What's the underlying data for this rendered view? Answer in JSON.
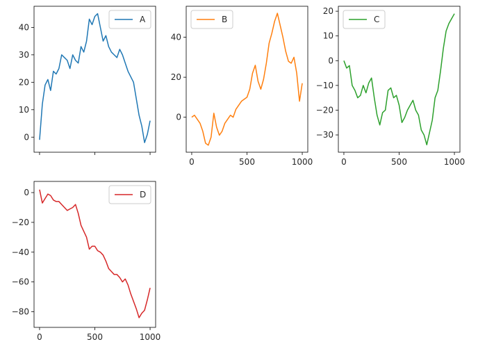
{
  "chart_data": [
    {
      "type": "line",
      "name": "panel-a",
      "series": [
        {
          "name": "A",
          "color": "#1f77b4",
          "x": [
            0,
            25,
            50,
            75,
            100,
            125,
            150,
            175,
            200,
            225,
            250,
            275,
            300,
            325,
            350,
            375,
            400,
            425,
            450,
            475,
            500,
            525,
            550,
            575,
            600,
            625,
            650,
            675,
            700,
            725,
            750,
            775,
            800,
            825,
            850,
            875,
            900,
            925,
            950,
            975,
            1000
          ],
          "y": [
            -1,
            12,
            19,
            21,
            17,
            24,
            23,
            25,
            30,
            29,
            28,
            25,
            30,
            28,
            27,
            33,
            31,
            35,
            43,
            41,
            44,
            45,
            40,
            35,
            37,
            33,
            31,
            30,
            29,
            32,
            30,
            27,
            24,
            22,
            20,
            14,
            8,
            4,
            -2,
            1,
            6
          ]
        }
      ],
      "xlim": [
        -50,
        1050
      ],
      "ylim": [
        -5.5,
        47.7
      ],
      "xticks": [
        0,
        500,
        1000
      ],
      "xtick_labels": [
        "",
        "",
        ""
      ],
      "yticks": [
        0,
        10,
        20,
        30,
        40
      ],
      "ytick_labels": [
        "0",
        "10",
        "20",
        "30",
        "40"
      ],
      "legend_loc": "top-right"
    },
    {
      "type": "line",
      "name": "panel-b",
      "series": [
        {
          "name": "B",
          "color": "#ff7f0e",
          "x": [
            0,
            25,
            50,
            75,
            100,
            125,
            150,
            175,
            200,
            225,
            250,
            275,
            300,
            325,
            350,
            375,
            400,
            425,
            450,
            475,
            500,
            525,
            550,
            575,
            600,
            625,
            650,
            675,
            700,
            725,
            750,
            775,
            800,
            825,
            850,
            875,
            900,
            925,
            950,
            975,
            1000
          ],
          "y": [
            0,
            1,
            -1,
            -3,
            -7,
            -13,
            -14,
            -10,
            2,
            -5,
            -9,
            -7,
            -3,
            -1,
            1,
            0,
            4,
            6,
            8,
            9,
            10,
            14,
            22,
            26,
            18,
            14,
            19,
            27,
            37,
            42,
            48,
            52,
            46,
            40,
            33,
            28,
            27,
            30,
            22,
            8,
            17
          ]
        }
      ],
      "xlim": [
        -50,
        1050
      ],
      "ylim": [
        -17.5,
        55.5
      ],
      "xticks": [
        0,
        500,
        1000
      ],
      "xtick_labels": [
        "0",
        "500",
        "1000"
      ],
      "yticks": [
        0,
        20,
        40
      ],
      "ytick_labels": [
        "0",
        "20",
        "40"
      ],
      "legend_loc": "top-left"
    },
    {
      "type": "line",
      "name": "panel-c",
      "series": [
        {
          "name": "C",
          "color": "#2ca02c",
          "x": [
            0,
            25,
            50,
            75,
            100,
            125,
            150,
            175,
            200,
            225,
            250,
            275,
            300,
            325,
            350,
            375,
            400,
            425,
            450,
            475,
            500,
            525,
            550,
            575,
            600,
            625,
            650,
            675,
            700,
            725,
            750,
            775,
            800,
            825,
            850,
            875,
            900,
            925,
            950,
            975,
            1000
          ],
          "y": [
            0,
            -3,
            -2,
            -10,
            -12,
            -15,
            -14,
            -10,
            -13,
            -9,
            -7,
            -15,
            -22,
            -26,
            -21,
            -20,
            -12,
            -11,
            -15,
            -14,
            -18,
            -25,
            -23,
            -20,
            -18,
            -16,
            -20,
            -22,
            -28,
            -30,
            -34,
            -29,
            -24,
            -15,
            -12,
            -4,
            5,
            12,
            15,
            17,
            19
          ]
        }
      ],
      "xlim": [
        -50,
        1050
      ],
      "ylim": [
        -37,
        22
      ],
      "xticks": [
        0,
        500,
        1000
      ],
      "xtick_labels": [
        "0",
        "500",
        "1000"
      ],
      "yticks": [
        -30,
        -20,
        -10,
        0,
        10,
        20
      ],
      "ytick_labels": [
        "−30",
        "−20",
        "−10",
        "0",
        "10",
        "20"
      ],
      "legend_loc": "top-left"
    },
    {
      "type": "line",
      "name": "panel-d",
      "series": [
        {
          "name": "D",
          "color": "#d62728",
          "x": [
            0,
            25,
            50,
            75,
            100,
            125,
            150,
            175,
            200,
            225,
            250,
            275,
            300,
            325,
            350,
            375,
            400,
            425,
            450,
            475,
            500,
            525,
            550,
            575,
            600,
            625,
            650,
            675,
            700,
            725,
            750,
            775,
            800,
            825,
            850,
            875,
            900,
            925,
            950,
            975,
            1000
          ],
          "y": [
            2,
            -7,
            -4,
            -1,
            -2,
            -5,
            -6,
            -6,
            -8,
            -10,
            -12,
            -11,
            -10,
            -8,
            -14,
            -22,
            -26,
            -30,
            -38,
            -36,
            -36,
            -39,
            -40,
            -42,
            -46,
            -51,
            -53,
            -55,
            -55,
            -57,
            -60,
            -58,
            -62,
            -68,
            -73,
            -78,
            -84,
            -81,
            -79,
            -72,
            -64
          ]
        }
      ],
      "xlim": [
        -50,
        1050
      ],
      "ylim": [
        -90.5,
        7.5
      ],
      "xticks": [
        0,
        500,
        1000
      ],
      "xtick_labels": [
        "0",
        "500",
        "1000"
      ],
      "yticks": [
        -80,
        -60,
        -40,
        -20,
        0
      ],
      "ytick_labels": [
        "−80",
        "−60",
        "−40",
        "−20",
        "0"
      ],
      "legend_loc": "top-right"
    }
  ]
}
